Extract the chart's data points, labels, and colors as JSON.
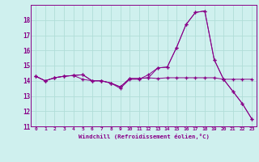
{
  "bg_color": "#cff0ee",
  "grid_color": "#b0ddd8",
  "line_color": "#880088",
  "xlim": [
    -0.5,
    23.5
  ],
  "ylim": [
    11,
    19
  ],
  "yticks": [
    11,
    12,
    13,
    14,
    15,
    16,
    17,
    18
  ],
  "xticks": [
    0,
    1,
    2,
    3,
    4,
    5,
    6,
    7,
    8,
    9,
    10,
    11,
    12,
    13,
    14,
    15,
    16,
    17,
    18,
    19,
    20,
    21,
    22,
    23
  ],
  "xlabel": "Windchill (Refroidissement éolien,°C)",
  "series1_x": [
    0,
    1,
    2,
    3,
    4,
    5,
    6,
    7,
    8,
    9,
    10,
    11,
    12,
    13,
    14,
    15,
    16,
    17,
    18,
    19,
    20,
    21,
    22,
    23
  ],
  "series1_y": [
    14.3,
    14.0,
    14.2,
    14.3,
    14.35,
    14.4,
    14.0,
    14.0,
    13.85,
    13.6,
    14.15,
    14.15,
    14.2,
    14.15,
    14.2,
    14.2,
    14.2,
    14.2,
    14.2,
    14.2,
    14.1,
    14.1,
    14.1,
    14.1
  ],
  "series2_x": [
    0,
    1,
    2,
    3,
    4,
    5,
    6,
    7,
    8,
    9,
    10,
    11,
    12,
    13,
    14,
    15,
    16,
    17,
    18,
    19,
    20,
    21,
    22,
    23
  ],
  "series2_y": [
    14.3,
    14.0,
    14.2,
    14.3,
    14.35,
    14.1,
    14.0,
    14.0,
    13.85,
    13.5,
    14.1,
    14.1,
    14.4,
    14.85,
    14.9,
    16.2,
    17.7,
    18.5,
    18.6,
    15.4,
    14.1,
    13.3,
    12.5,
    11.5
  ],
  "series3_x": [
    0,
    1,
    2,
    3,
    4,
    5,
    6,
    7,
    8,
    9,
    10,
    11,
    12,
    13,
    14,
    15,
    16,
    17,
    18,
    19,
    20,
    21,
    22,
    23
  ],
  "series3_y": [
    14.3,
    14.0,
    14.2,
    14.3,
    14.35,
    14.4,
    14.0,
    14.0,
    13.85,
    13.6,
    14.15,
    14.15,
    14.2,
    14.85,
    14.9,
    16.2,
    17.7,
    18.5,
    18.6,
    15.4,
    14.1,
    13.3,
    12.5,
    11.5
  ]
}
